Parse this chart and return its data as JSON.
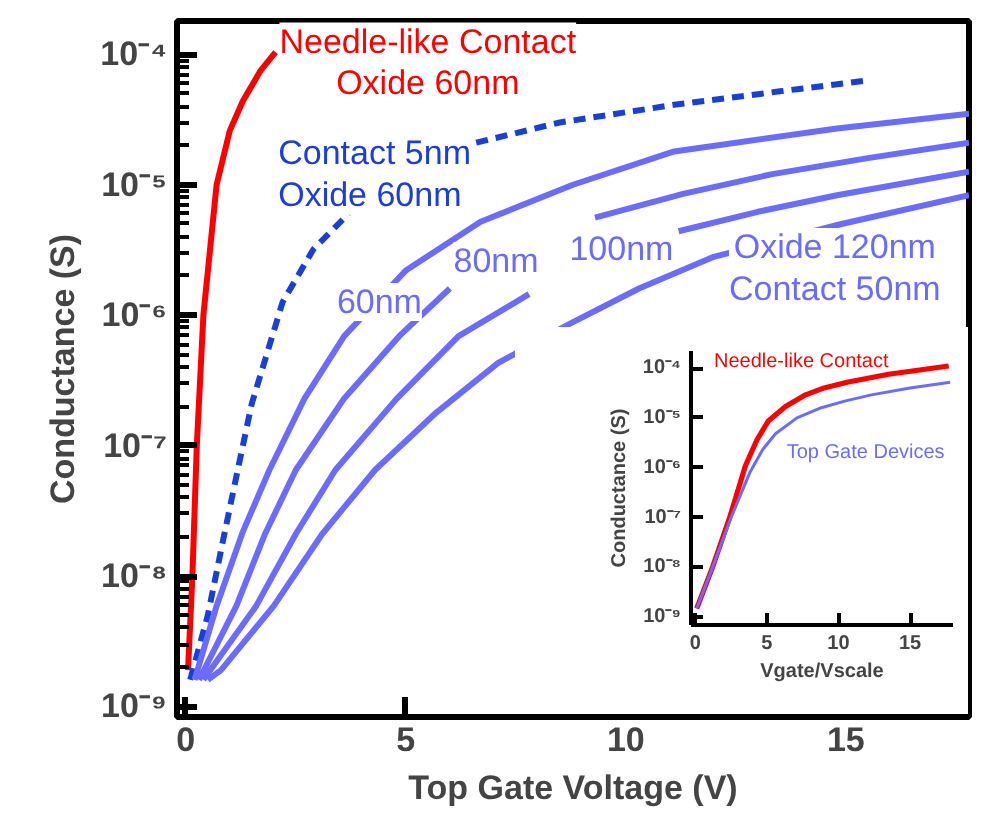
{
  "chart_data": [
    {
      "type": "line",
      "xlabel": "Top Gate Voltage (V)",
      "ylabel": "Conductance (S)",
      "log": "y",
      "grid": false,
      "xlim": [
        -0.2,
        17.8
      ],
      "ylim": [
        8.3e-10,
        0.00018
      ],
      "xticks": [
        0,
        5,
        10,
        15
      ],
      "yticks": [
        {
          "value": 1e-09,
          "label": "10⁻⁹"
        },
        {
          "value": 1e-08,
          "label": "10⁻⁸"
        },
        {
          "value": 1e-07,
          "label": "10⁻⁷"
        },
        {
          "value": 1e-06,
          "label": "10⁻⁶"
        },
        {
          "value": 1e-05,
          "label": "10⁻⁵"
        },
        {
          "value": 0.0001,
          "label": "10⁻⁴"
        }
      ],
      "series": [
        {
          "name": "Needle-like Contact\nOxide 60nm",
          "color": "#ff0000",
          "x": [
            0.05,
            0.15,
            0.25,
            0.4,
            0.7,
            1.0,
            1.3,
            1.7,
            2.04
          ],
          "values": [
            1.9e-09,
            1e-08,
            1e-07,
            1e-06,
            1e-05,
            2.6e-05,
            4.4e-05,
            7.5e-05,
            0.000104
          ]
        },
        {
          "name": "Contact 5nm\nOxide 60nm",
          "color": "#1a3fd9",
          "line_style": "dashed",
          "x": [
            0.1,
            0.5,
            0.85,
            1.2,
            1.5,
            2.2,
            2.9,
            3.7,
            4.5,
            5.5,
            6.6,
            8.5,
            11.1,
            13.5,
            15.5
          ],
          "values": [
            1.6e-09,
            5e-09,
            1.9e-08,
            7e-08,
            2.1e-07,
            1.26e-06,
            3.2e-06,
            6e-06,
            null,
            null,
            2.1e-05,
            3e-05,
            4.1e-05,
            5.2e-05,
            6.3e-05
          ]
        },
        {
          "name": "60nm",
          "color": "#6b6bff",
          "x": [
            0.2,
            0.7,
            1.3,
            1.9,
            2.7,
            3.6,
            5.0,
            6.7,
            8.8,
            11.1,
            14.8,
            17.8
          ],
          "values": [
            1.6e-09,
            5.9e-09,
            2.2e-08,
            6.5e-08,
            2.3e-07,
            6.9e-07,
            2.2e-06,
            5.2e-06,
            1e-05,
            1.8e-05,
            2.7e-05,
            3.5e-05
          ]
        },
        {
          "name": "80nm",
          "color": "#6b6bff",
          "x": [
            0.3,
            1.15,
            1.8,
            2.5,
            3.6,
            4.85,
            6.0,
            7.5,
            9.3,
            11.3,
            13.3,
            15.5,
            17.8
          ],
          "values": [
            1.6e-09,
            5.9e-09,
            2.1e-08,
            6.5e-08,
            2.3e-07,
            6.9e-07,
            1.6e-06,
            null,
            5.6e-06,
            8.5e-06,
            1.2e-05,
            1.6e-05,
            2.1e-05
          ]
        },
        {
          "name": "100nm",
          "color": "#6b6bff",
          "x": [
            0.4,
            1.6,
            2.5,
            3.4,
            4.8,
            6.2,
            7.8,
            9.5,
            11.2,
            13,
            14.8,
            17.8
          ],
          "values": [
            1.6e-09,
            5.9e-09,
            2.1e-08,
            6.5e-08,
            2.3e-07,
            6.9e-07,
            1.45e-06,
            null,
            4.4e-06,
            6.2e-06,
            8.3e-06,
            1.26e-05
          ]
        },
        {
          "name": "Oxide 120nm\nContact 50nm",
          "color": "#6b6bff",
          "x": [
            0.5,
            0.8,
            2.0,
            3.1,
            4.3,
            5.7,
            7.1,
            8.7,
            10.3,
            12,
            14.9,
            17.8
          ],
          "values": [
            1.6e-09,
            1.9e-09,
            5.9e-09,
            2.1e-08,
            6.5e-08,
            1.8e-07,
            4.3e-07,
            8.5e-07,
            1.6e-06,
            2.8e-06,
            5e-06,
            8.3e-06
          ]
        }
      ]
    },
    {
      "type": "line",
      "xlabel": "Vgate/Vscale",
      "ylabel": "Conductance (S)",
      "log": "y",
      "grid": false,
      "xlim": [
        -0.3,
        18
      ],
      "ylim": [
        7e-10,
        0.00022
      ],
      "xticks": [
        0,
        5,
        10,
        15
      ],
      "yticks": [
        {
          "value": 1e-09,
          "label": "10⁻⁹"
        },
        {
          "value": 1e-08,
          "label": "10⁻⁸"
        },
        {
          "value": 1e-07,
          "label": "10⁻⁷"
        },
        {
          "value": 1e-06,
          "label": "10⁻⁶"
        },
        {
          "value": 1e-05,
          "label": "10⁻⁵"
        },
        {
          "value": 0.0001,
          "label": "10⁻⁴"
        }
      ],
      "series": [
        {
          "name": "Needle-like Contact",
          "color": "#ff0000",
          "x": [
            0.1,
            1.2,
            2.4,
            3.5,
            4.3,
            5.1,
            6.3,
            7.7,
            9.0,
            10.6,
            13.5,
            17.7
          ],
          "values": [
            1.5e-09,
            1e-08,
            1e-07,
            1.1e-06,
            3.6e-06,
            8.7e-06,
            1.7e-05,
            2.9e-05,
            4e-05,
            5.2e-05,
            7.5e-05,
            0.00011
          ]
        },
        {
          "name": "Top Gate Devices",
          "color": "#6b6bff",
          "x": [
            0.1,
            1.2,
            2.5,
            3.8,
            4.7,
            5.6,
            7.1,
            8.8,
            10.5,
            12.3,
            15,
            17.8
          ],
          "values": [
            1.5e-09,
            1e-08,
            1e-07,
            7.9e-07,
            2.3e-06,
            4.8e-06,
            1e-05,
            1.6e-05,
            2.2e-05,
            2.9e-05,
            4e-05,
            5.2e-05
          ]
        }
      ]
    }
  ]
}
